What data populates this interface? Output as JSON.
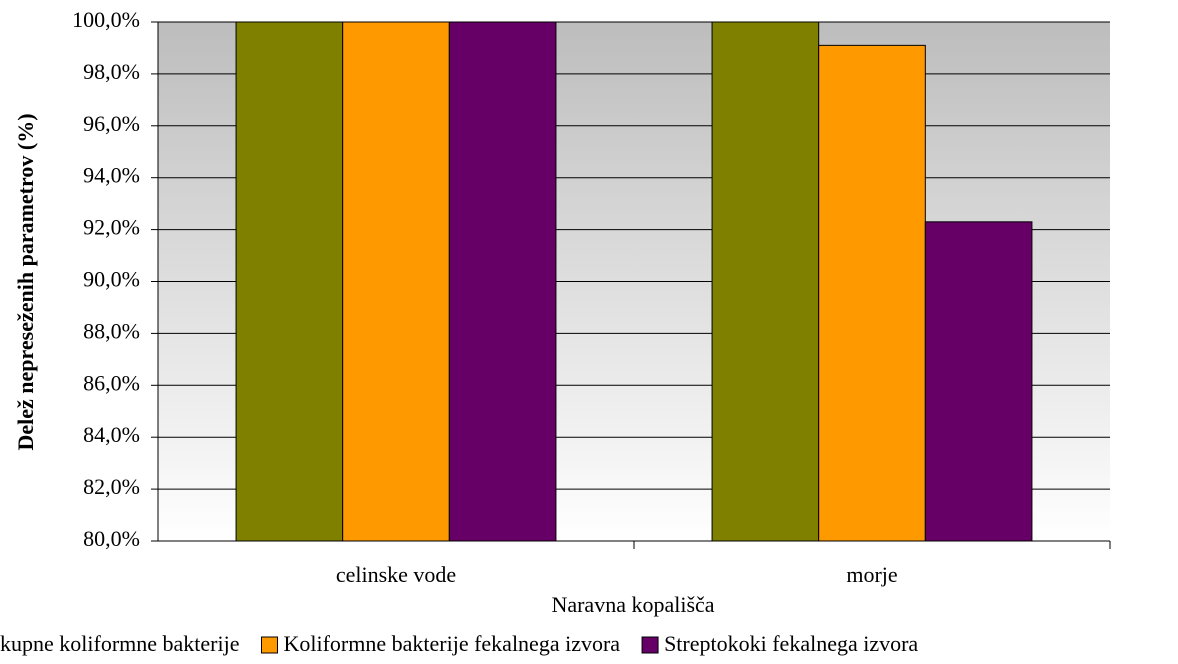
{
  "chart_data": {
    "type": "bar",
    "categories": [
      "celinske vode",
      "morje"
    ],
    "series": [
      {
        "name": "kupne koliformne bakterije",
        "color": "#808000",
        "values": [
          100,
          100
        ]
      },
      {
        "name": "Koliformne bakterije fekalnega izvora",
        "color": "#ff9900",
        "values": [
          100,
          99.1
        ]
      },
      {
        "name": "Streptokoki fekalnega izvora",
        "color": "#660066",
        "values": [
          100,
          92.3
        ]
      }
    ],
    "x_label": "Naravna kopališča",
    "y_label": "Delež nepreseženih parametrov (%)",
    "ylim": [
      80,
      100
    ],
    "yticks": [
      {
        "value": 80,
        "label": "80,0%"
      },
      {
        "value": 82,
        "label": "82,0%"
      },
      {
        "value": 84,
        "label": "84,0%"
      },
      {
        "value": 86,
        "label": "86,0%"
      },
      {
        "value": 88,
        "label": "88,0%"
      },
      {
        "value": 90,
        "label": "90,0%"
      },
      {
        "value": 92,
        "label": "92,0%"
      },
      {
        "value": 94,
        "label": "94,0%"
      },
      {
        "value": 96,
        "label": "96,0%"
      },
      {
        "value": 98,
        "label": "98,0%"
      },
      {
        "value": 100,
        "label": "100,0%"
      }
    ],
    "grid": true,
    "legend": "bottom"
  }
}
